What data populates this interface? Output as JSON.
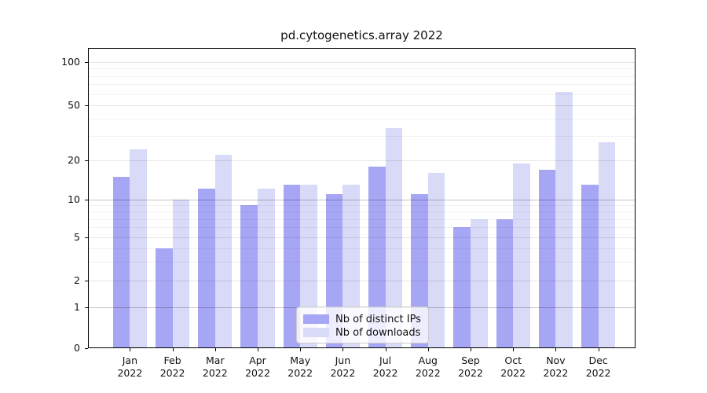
{
  "chart_data": {
    "type": "bar",
    "title": "pd.cytogenetics.array 2022",
    "categories": [
      "Jan 2022",
      "Feb 2022",
      "Mar 2022",
      "Apr 2022",
      "May 2022",
      "Jun 2022",
      "Jul 2022",
      "Aug 2022",
      "Sep 2022",
      "Oct 2022",
      "Nov 2022",
      "Dec 2022"
    ],
    "series": [
      {
        "name": "Nb of distinct IPs",
        "color": "#a6a6f4",
        "values": [
          15,
          4,
          12,
          9,
          13,
          11,
          18,
          11,
          6,
          7,
          17,
          13
        ]
      },
      {
        "name": "Nb of downloads",
        "color": "#d9d9f8",
        "values": [
          24,
          10,
          22,
          12,
          13,
          13,
          34,
          16,
          7,
          19,
          62,
          27
        ]
      }
    ],
    "yscale": "log",
    "ylim": [
      0,
      125
    ],
    "yticks": [
      0,
      1,
      2,
      5,
      10,
      20,
      50,
      100
    ],
    "ytick_labels": [
      "0",
      "1",
      "2",
      "5",
      "10",
      "20",
      "50",
      "100"
    ],
    "minor_yticks": [
      3,
      4,
      6,
      7,
      8,
      9,
      30,
      40,
      60,
      70,
      80,
      90
    ],
    "grid": true,
    "legend": {
      "position": "lower center",
      "entries": [
        "Nb of distinct IPs",
        "Nb of downloads"
      ]
    }
  }
}
